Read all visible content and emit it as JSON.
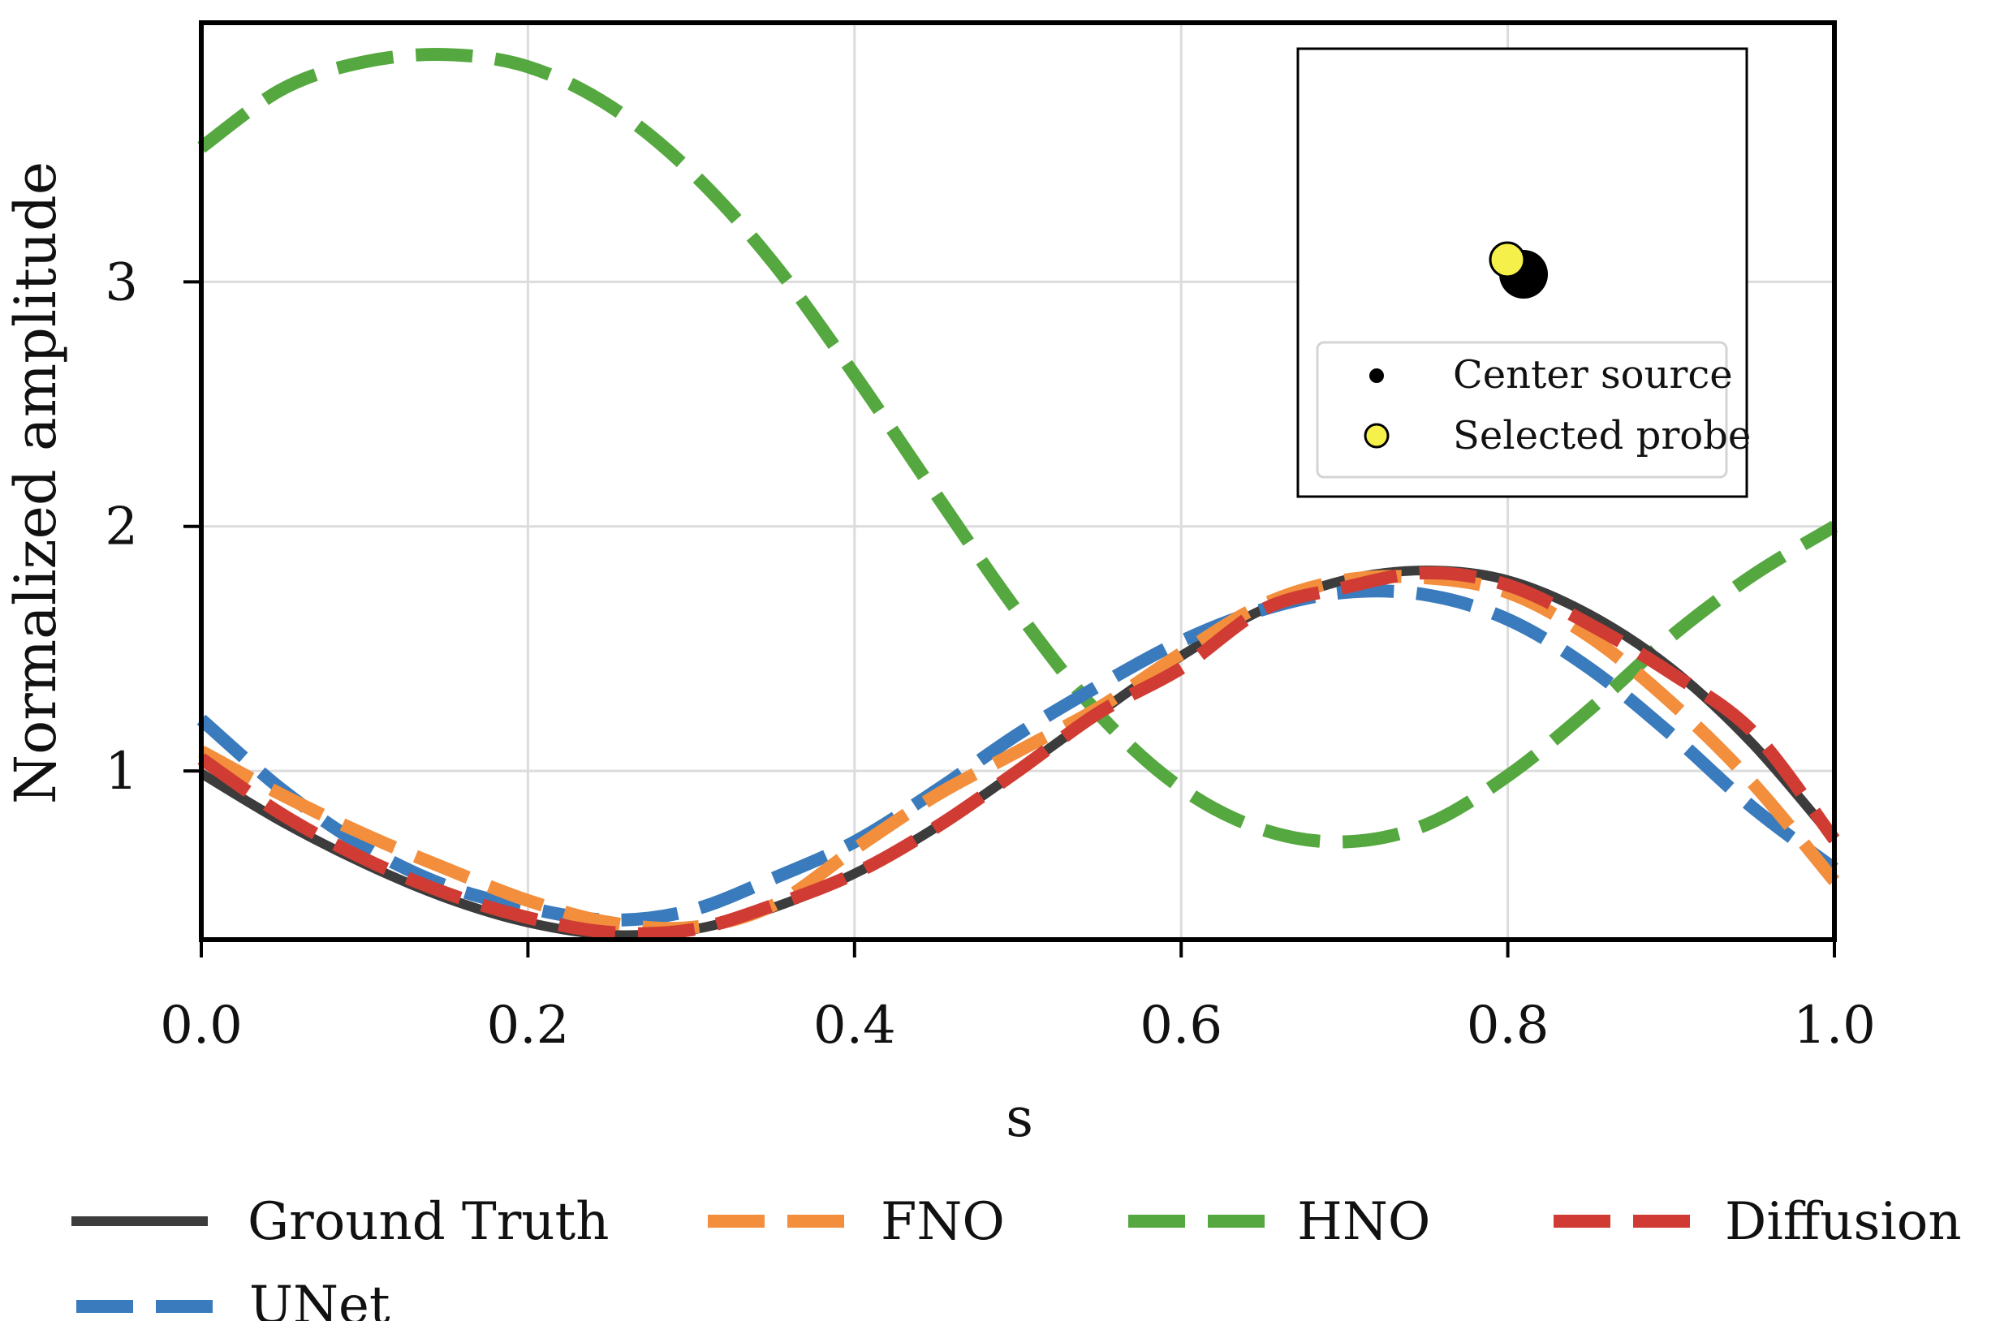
{
  "chart_data": {
    "type": "line",
    "title": "",
    "xlabel": "s",
    "ylabel": "Normalized amplitude",
    "xlim": [
      0.0,
      1.0
    ],
    "ylim": [
      0.31,
      4.06
    ],
    "xticks": [
      0.0,
      0.2,
      0.4,
      0.6,
      0.8,
      1.0
    ],
    "xtick_labels": [
      "0.0",
      "0.2",
      "0.4",
      "0.6",
      "0.8",
      "1.0"
    ],
    "yticks": [
      1,
      2,
      3
    ],
    "ytick_labels": [
      "1",
      "2",
      "3"
    ],
    "grid": true,
    "x": [
      0.0,
      0.05,
      0.1,
      0.15,
      0.2,
      0.25,
      0.3,
      0.35,
      0.4,
      0.45,
      0.5,
      0.55,
      0.6,
      0.65,
      0.7,
      0.75,
      0.8,
      0.85,
      0.9,
      0.95,
      1.0
    ],
    "series": [
      {
        "name": "Ground Truth",
        "color": "#3c3c3c",
        "style": "solid",
        "values": [
          0.99,
          0.79,
          0.62,
          0.48,
          0.38,
          0.33,
          0.35,
          0.44,
          0.58,
          0.77,
          1.0,
          1.24,
          1.47,
          1.66,
          1.78,
          1.82,
          1.78,
          1.64,
          1.42,
          1.11,
          0.72
        ]
      },
      {
        "name": "FNO",
        "color": "#f28e3c",
        "style": "dashed",
        "values": [
          1.08,
          0.9,
          0.74,
          0.6,
          0.47,
          0.38,
          0.36,
          0.45,
          0.68,
          0.9,
          1.08,
          1.26,
          1.48,
          1.68,
          1.78,
          1.79,
          1.73,
          1.55,
          1.28,
          0.95,
          0.55
        ]
      },
      {
        "name": "HNO",
        "color": "#55a83f",
        "style": "dashed",
        "values": [
          3.55,
          3.79,
          3.9,
          3.93,
          3.88,
          3.72,
          3.45,
          3.08,
          2.62,
          2.13,
          1.65,
          1.23,
          0.93,
          0.76,
          0.71,
          0.78,
          0.98,
          1.25,
          1.55,
          1.8,
          2.0
        ]
      },
      {
        "name": "Diffusion",
        "color": "#d03c33",
        "style": "dashed",
        "values": [
          1.05,
          0.82,
          0.64,
          0.5,
          0.4,
          0.34,
          0.35,
          0.45,
          0.58,
          0.77,
          1.0,
          1.24,
          1.42,
          1.66,
          1.75,
          1.81,
          1.76,
          1.6,
          1.4,
          1.16,
          0.72
        ]
      },
      {
        "name": "UNet",
        "color": "#3a7bbd",
        "style": "dashed",
        "values": [
          1.21,
          0.92,
          0.69,
          0.53,
          0.44,
          0.39,
          0.43,
          0.56,
          0.71,
          0.92,
          1.15,
          1.35,
          1.53,
          1.66,
          1.73,
          1.72,
          1.62,
          1.42,
          1.15,
          0.85,
          0.6
        ]
      }
    ],
    "inset": {
      "legend": [
        {
          "label": "Center source",
          "color": "#000000"
        },
        {
          "label": "Selected probe",
          "color": "#f5f04a"
        }
      ]
    },
    "legend_position": "bottom",
    "legend_order": [
      "Ground Truth",
      "FNO",
      "HNO",
      "Diffusion",
      "UNet"
    ]
  }
}
